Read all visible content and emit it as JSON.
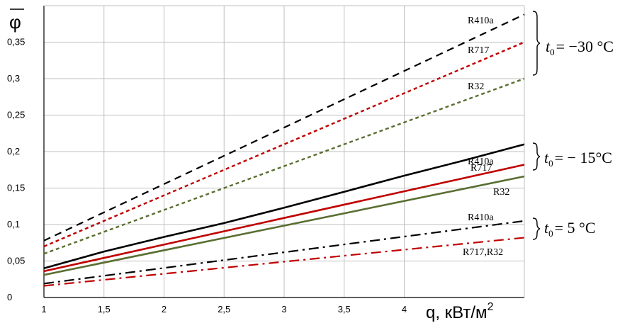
{
  "chart_data": {
    "type": "line",
    "title": "",
    "xlabel": "q, кВт/м",
    "xlabel_superscript": "2",
    "ylabel": "φ",
    "xlim": [
      1,
      5
    ],
    "ylim": [
      0,
      0.4
    ],
    "x_ticks": [
      1,
      1.5,
      2,
      2.5,
      3,
      3.5,
      4
    ],
    "x_tick_labels": [
      "1",
      "1,5",
      "2",
      "2,5",
      "3",
      "3,5",
      "4"
    ],
    "y_ticks": [
      0,
      0.05,
      0.1,
      0.15,
      0.2,
      0.25,
      0.3,
      0.35
    ],
    "y_tick_labels": [
      "0",
      "0,05",
      "0,1",
      "0,15",
      "0,2",
      "0,25",
      "0,3",
      "0,35"
    ],
    "grid": true,
    "series": [
      {
        "name": "R410a",
        "group": "t30",
        "color": "#000000",
        "dash": "dashed",
        "x": [
          1,
          5
        ],
        "y": [
          0.078,
          0.388
        ]
      },
      {
        "name": "R717",
        "group": "t30",
        "color": "#c00000",
        "dash": "dotted",
        "x": [
          1,
          5
        ],
        "y": [
          0.07,
          0.35
        ]
      },
      {
        "name": "R32",
        "group": "t30",
        "color": "#5a6e32",
        "dash": "dotted",
        "x": [
          1,
          5
        ],
        "y": [
          0.06,
          0.3
        ]
      },
      {
        "name": "R410a",
        "group": "t15",
        "color": "#000000",
        "dash": "solid",
        "x": [
          1,
          1.5,
          2,
          2.5,
          3,
          3.5,
          4,
          4.5,
          5
        ],
        "y": [
          0.04,
          0.063,
          0.083,
          0.102,
          0.123,
          0.145,
          0.167,
          0.188,
          0.21
        ]
      },
      {
        "name": "R717",
        "group": "t15",
        "color": "#c00000",
        "dash": "solid",
        "x": [
          1,
          5
        ],
        "y": [
          0.036,
          0.182
        ]
      },
      {
        "name": "R32",
        "group": "t15",
        "color": "#5a6e32",
        "dash": "solid",
        "x": [
          1,
          5
        ],
        "y": [
          0.031,
          0.166
        ]
      },
      {
        "name": "R410a",
        "group": "t5",
        "color": "#000000",
        "dash": "dashdot",
        "x": [
          1,
          5
        ],
        "y": [
          0.019,
          0.105
        ]
      },
      {
        "name": "R717,R32",
        "group": "t5",
        "color": "#c00000",
        "dash": "dashdot",
        "x": [
          1,
          5
        ],
        "y": [
          0.016,
          0.082
        ]
      }
    ],
    "groups": [
      {
        "id": "t30",
        "label_var": "t",
        "label_sub": "0",
        "label_value": "= −30 °C"
      },
      {
        "id": "t15",
        "label_var": "t",
        "label_sub": "0",
        "label_value": "= − 15°C"
      },
      {
        "id": "t5",
        "label_var": "t",
        "label_sub": "0",
        "label_value": "= 5 °C"
      }
    ]
  }
}
